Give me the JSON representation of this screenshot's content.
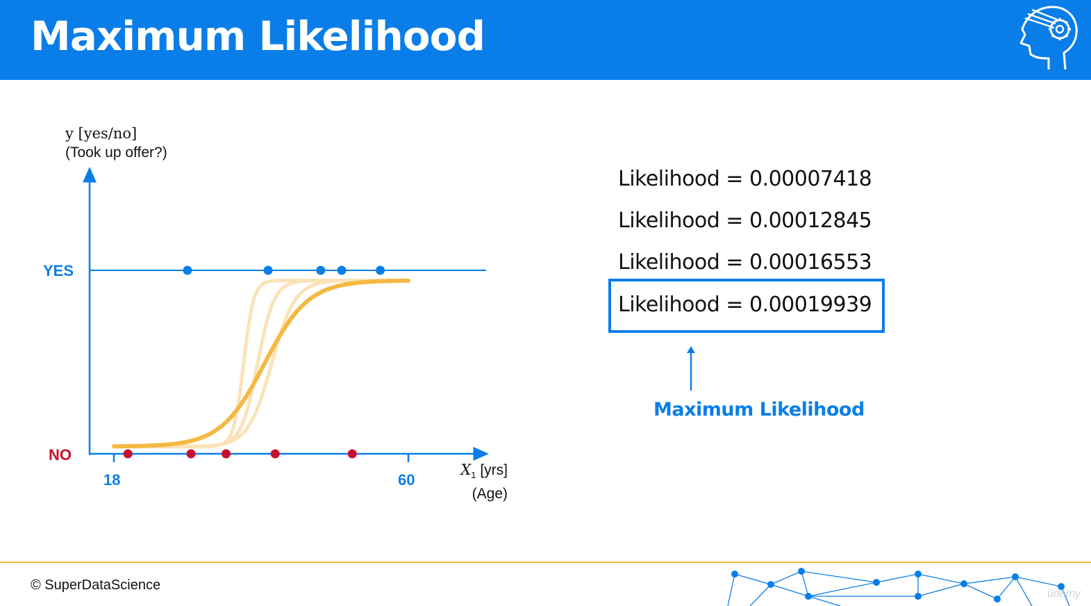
{
  "header": {
    "title": "Maximum Likelihood",
    "logo_icon": "brain-gear-icon",
    "background_color": "#0a7ee8"
  },
  "chart_data": {
    "type": "scatter",
    "y_axis_label_line1": "y [yes/no]",
    "y_axis_label_line2": "(Took up offer?)",
    "y_categories": [
      "NO",
      "YES"
    ],
    "x_axis_label_var": "X",
    "x_axis_label_sub": "1",
    "x_axis_label_unit": " [yrs]",
    "x_axis_label_line2": "(Age)",
    "x_ticks": [
      18,
      60
    ],
    "xlim": [
      14,
      71
    ],
    "series": [
      {
        "color": "#0a7ee8",
        "x": [
          28.5,
          40,
          47.5,
          50.5,
          56
        ],
        "y": [
          1,
          1,
          1,
          1,
          1
        ]
      },
      {
        "color": "#c8102e",
        "x": [
          20,
          29,
          34,
          41,
          52
        ],
        "y": [
          0,
          0,
          0,
          0,
          0
        ]
      }
    ],
    "curves": [
      {
        "color": "#fbe3b8",
        "x0": 36.5,
        "k": 1.4
      },
      {
        "color": "#fbe3b8",
        "x0": 38.5,
        "k": 0.85
      },
      {
        "color": "#fbe3b8",
        "x0": 40.5,
        "k": 0.6
      },
      {
        "color": "#f4b942",
        "x0": 39.5,
        "k": 0.32
      }
    ],
    "curve_range": [
      18,
      60
    ],
    "colors": {
      "axis": "#0a7ee8",
      "yes": "#0a7ee8",
      "no": "#c8102e"
    }
  },
  "likelihoods": [
    "Likelihood = 0.00007418",
    "Likelihood = 0.00012845",
    "Likelihood = 0.00016553",
    "Likelihood = 0.00019939"
  ],
  "max_label": "Maximum Likelihood",
  "footer": {
    "copyright": "© SuperDataScience",
    "accent_color": "#f4b942",
    "watermark": "ûdemy"
  }
}
